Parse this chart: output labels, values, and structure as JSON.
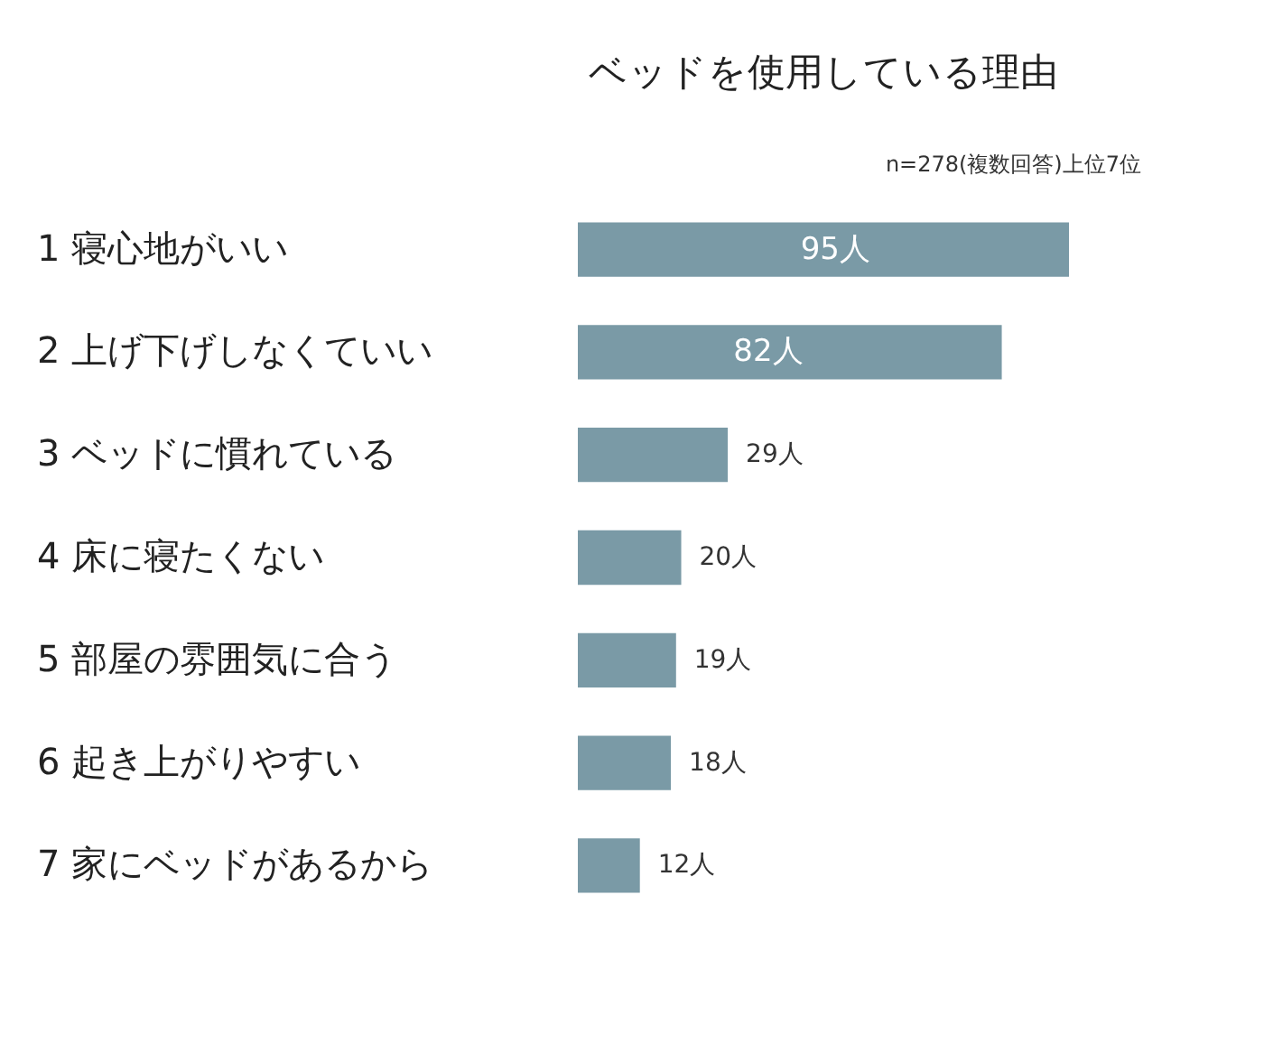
{
  "chart_data": {
    "type": "bar",
    "orientation": "horizontal",
    "title": "ベッドを使用している理由",
    "annotations": [
      "n=278(複数回答)上位7位"
    ],
    "categories": [
      "1 寝心地がいい",
      "2 上げ下げしなくていい",
      "3 ベッドに慣れている",
      "4 床に寝たくない",
      "5 部屋の雰囲気に合う",
      "6 起き上がりやすい",
      "7 家にベッドがあるから"
    ],
    "values": [
      95,
      82,
      29,
      20,
      19,
      18,
      12
    ],
    "value_labels": [
      "95人",
      "82人",
      "29人",
      "20人",
      "19人",
      "18人",
      "12人"
    ],
    "color": "#7a9aa6"
  }
}
